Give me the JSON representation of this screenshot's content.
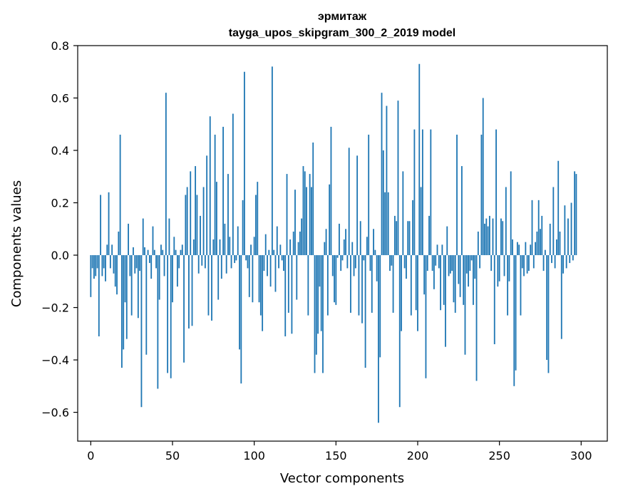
{
  "chart_data": {
    "type": "bar",
    "title": "эрмитаж",
    "subtitle": "tayga_upos_skipgram_300_2_2019 model",
    "xlabel": "Vector components",
    "ylabel": "Components values",
    "xlim": [
      -8,
      316
    ],
    "ylim": [
      -0.71,
      0.8
    ],
    "xticks": [
      0,
      50,
      100,
      150,
      200,
      250,
      300
    ],
    "yticks": [
      -0.6,
      -0.4,
      -0.2,
      0.0,
      0.2,
      0.4,
      0.6,
      0.8
    ],
    "bar_color": "#1f77b4",
    "values": [
      -0.16,
      -0.05,
      -0.09,
      -0.08,
      -0.05,
      -0.31,
      0.23,
      -0.08,
      -0.05,
      -0.1,
      0.04,
      0.24,
      -0.05,
      0.04,
      -0.07,
      -0.12,
      -0.15,
      0.09,
      0.46,
      -0.43,
      -0.36,
      -0.18,
      -0.32,
      0.12,
      -0.08,
      -0.23,
      0.03,
      -0.07,
      -0.05,
      -0.24,
      -0.06,
      -0.58,
      0.14,
      0.03,
      -0.38,
      0.02,
      -0.03,
      -0.09,
      0.11,
      0.02,
      -0.05,
      -0.51,
      -0.17,
      0.04,
      0.02,
      -0.08,
      0.62,
      -0.45,
      0.14,
      -0.47,
      -0.18,
      0.07,
      0.02,
      -0.12,
      -0.05,
      0.02,
      0.04,
      -0.41,
      0.23,
      0.26,
      -0.28,
      0.32,
      -0.27,
      0.06,
      0.34,
      0.23,
      -0.07,
      0.15,
      -0.04,
      0.26,
      -0.05,
      0.38,
      -0.23,
      0.53,
      -0.25,
      0.06,
      0.46,
      0.28,
      -0.17,
      0.06,
      -0.09,
      0.49,
      0.12,
      -0.07,
      0.31,
      0.07,
      -0.05,
      0.54,
      -0.03,
      -0.02,
      0.11,
      -0.36,
      -0.49,
      0.21,
      0.7,
      -0.02,
      -0.05,
      -0.16,
      0.04,
      -0.18,
      0.07,
      0.23,
      0.28,
      -0.18,
      -0.23,
      -0.29,
      -0.06,
      0.08,
      -0.08,
      0.02,
      -0.12,
      0.72,
      0.02,
      -0.14,
      0.11,
      -0.05,
      0.04,
      -0.02,
      -0.06,
      -0.31,
      0.31,
      -0.22,
      0.06,
      -0.3,
      0.09,
      0.25,
      -0.17,
      0.05,
      0.09,
      0.14,
      0.34,
      0.32,
      0.26,
      -0.23,
      0.31,
      0.26,
      0.43,
      -0.45,
      -0.38,
      -0.3,
      -0.12,
      -0.29,
      -0.45,
      0.05,
      0.1,
      -0.23,
      0.27,
      0.49,
      -0.08,
      -0.18,
      -0.19,
      -0.01,
      0.12,
      -0.06,
      -0.02,
      0.06,
      0.1,
      -0.05,
      0.41,
      -0.22,
      0.05,
      -0.08,
      -0.05,
      0.38,
      -0.23,
      0.13,
      -0.26,
      -0.02,
      -0.43,
      0.07,
      0.46,
      -0.06,
      -0.22,
      0.1,
      0.02,
      -0.1,
      -0.64,
      -0.39,
      0.62,
      0.4,
      0.24,
      0.57,
      0.24,
      -0.06,
      -0.04,
      -0.22,
      0.15,
      0.13,
      0.59,
      -0.58,
      -0.29,
      0.32,
      -0.05,
      -0.09,
      0.13,
      0.13,
      -0.23,
      0.21,
      0.48,
      -0.21,
      -0.29,
      0.73,
      0.26,
      0.48,
      -0.15,
      -0.47,
      -0.06,
      0.15,
      0.48,
      -0.06,
      -0.13,
      -0.04,
      0.04,
      -0.05,
      -0.21,
      0.04,
      -0.19,
      -0.35,
      0.11,
      -0.08,
      -0.07,
      -0.06,
      -0.18,
      -0.22,
      0.46,
      -0.11,
      -0.16,
      0.34,
      -0.19,
      -0.38,
      -0.07,
      -0.12,
      -0.06,
      -0.02,
      -0.19,
      -0.09,
      -0.48,
      0.09,
      -0.05,
      0.46,
      0.6,
      0.12,
      0.14,
      0.11,
      0.15,
      -0.06,
      0.14,
      -0.34,
      0.48,
      -0.12,
      -0.1,
      0.14,
      0.13,
      -0.08,
      0.26,
      -0.23,
      -0.1,
      0.32,
      0.06,
      -0.5,
      -0.44,
      0.05,
      0.04,
      -0.23,
      -0.05,
      -0.08,
      0.05,
      -0.07,
      -0.06,
      0.04,
      0.21,
      -0.05,
      0.05,
      0.09,
      0.21,
      0.1,
      0.15,
      -0.06,
      0.02,
      -0.4,
      -0.45,
      0.12,
      -0.03,
      0.26,
      -0.05,
      0.06,
      0.36,
      0.09,
      -0.32,
      -0.07,
      0.19,
      -0.05,
      0.14,
      -0.03,
      0.2,
      -0.02,
      0.32,
      0.31
    ]
  }
}
